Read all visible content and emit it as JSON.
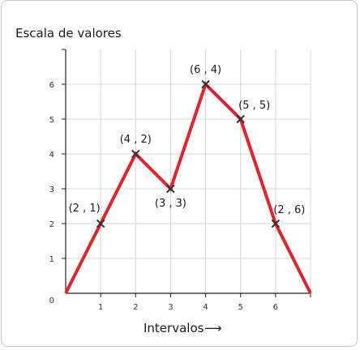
{
  "chart_data": {
    "type": "line",
    "ylabel": "Escala de valores",
    "xlabel": "Intervalos",
    "xlabel_arrow": "⟶",
    "origin_label": "0",
    "xlim": [
      0,
      7
    ],
    "ylim": [
      0,
      7
    ],
    "x_ticks": [
      "1",
      "2",
      "3",
      "4",
      "5",
      "6"
    ],
    "y_ticks": [
      "1",
      "2",
      "3",
      "4",
      "5",
      "6"
    ],
    "grid": true,
    "line_color": "#e3222c",
    "marker_color": "#333333",
    "series": [
      {
        "x": [
          0,
          1,
          2,
          3,
          4,
          5,
          6,
          7
        ],
        "y": [
          0,
          2,
          4,
          3,
          6,
          5,
          2,
          0
        ]
      }
    ],
    "point_labels": [
      {
        "x": 1,
        "y": 2,
        "text": "(2 , 1)",
        "anchor": "upper-left"
      },
      {
        "x": 2,
        "y": 4,
        "text": "(4 , 2)",
        "anchor": "above"
      },
      {
        "x": 3,
        "y": 3,
        "text": "(3 , 3)",
        "anchor": "below"
      },
      {
        "x": 4,
        "y": 6,
        "text": "(6 , 4)",
        "anchor": "above"
      },
      {
        "x": 5,
        "y": 5,
        "text": "(5 , 5)",
        "anchor": "upper-right"
      },
      {
        "x": 6,
        "y": 2,
        "text": "(2 , 6)",
        "anchor": "upper-right"
      }
    ]
  }
}
